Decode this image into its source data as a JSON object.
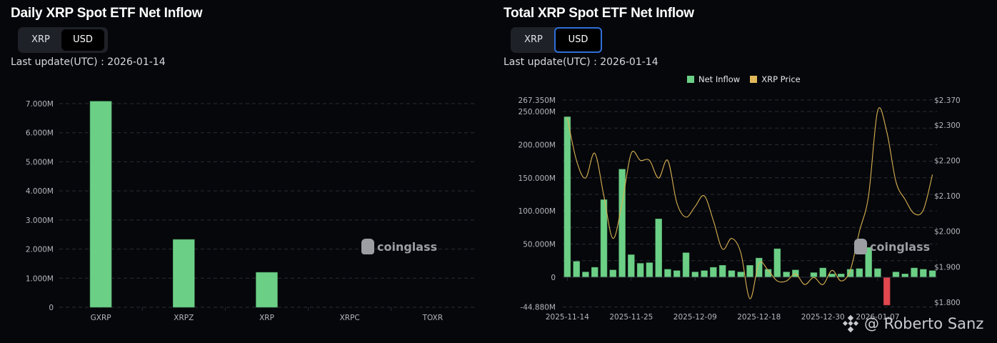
{
  "left": {
    "title": "Daily XRP Spot ETF Net Inflow",
    "toggle": [
      {
        "label": "XRP",
        "active": false
      },
      {
        "label": "USD",
        "active": true
      }
    ],
    "last_update": "Last update(UTC) : 2026-01-14"
  },
  "right": {
    "title": "Total XRP Spot ETF Net Inflow",
    "toggle": [
      {
        "label": "XRP",
        "active": false
      },
      {
        "label": "USD",
        "active": true
      }
    ],
    "last_update": "Last update(UTC) : 2026-01-14",
    "legend": [
      {
        "label": "Net Inflow",
        "color": "#6ccf86"
      },
      {
        "label": "XRP Price",
        "color": "#e1b85a"
      }
    ]
  },
  "watermark": "coinglass",
  "author": "@ Roberto Sanz",
  "colors": {
    "positive": "#6ccf86",
    "negative": "#e0474f",
    "price": "#d9b150",
    "background": "#06070b"
  },
  "chart_data": [
    {
      "type": "bar",
      "title": "Daily XRP Spot ETF Net Inflow",
      "xlabel": "",
      "ylabel": "",
      "categories": [
        "GXRP",
        "XRPZ",
        "XRP",
        "XRPC",
        "TOXR"
      ],
      "values": [
        7.08,
        2.33,
        1.2,
        0,
        0
      ],
      "unit": "M USD",
      "yticks": [
        "0",
        "1.000M",
        "2.000M",
        "3.000M",
        "4.000M",
        "5.000M",
        "6.000M",
        "7.000M"
      ],
      "ylim": [
        0,
        7.3
      ],
      "grid": true
    },
    {
      "type": "bar+line",
      "title": "Total XRP Spot ETF Net Inflow",
      "x_tick_labels": [
        "2025-11-14",
        "2025-11-25",
        "2025-12-09",
        "2025-12-18",
        "2025-12-30",
        "2026-01-07"
      ],
      "x_tick_index": [
        0,
        7,
        14,
        21,
        28,
        34
      ],
      "series": [
        {
          "name": "Net Inflow",
          "axis": "left",
          "unit": "M USD",
          "values": [
            242,
            24,
            8,
            15,
            117,
            11,
            163,
            34,
            21,
            22,
            88,
            12,
            10,
            37,
            8,
            10,
            15,
            18,
            10,
            8,
            18,
            29,
            12,
            43,
            8,
            11,
            0,
            7,
            14,
            5,
            5,
            12,
            13,
            45,
            13,
            -42,
            8,
            5,
            14,
            12,
            10
          ]
        },
        {
          "name": "XRP Price",
          "axis": "right",
          "unit": "USD",
          "values": [
            2.32,
            2.2,
            2.15,
            2.22,
            2.1,
            1.98,
            2.08,
            2.22,
            2.2,
            2.2,
            2.15,
            2.2,
            2.08,
            2.04,
            2.07,
            2.1,
            2.03,
            1.95,
            1.98,
            1.94,
            1.81,
            1.91,
            1.89,
            1.86,
            1.86,
            1.88,
            1.85,
            1.87,
            1.85,
            1.89,
            1.86,
            1.89,
            2.0,
            2.1,
            2.34,
            2.28,
            2.14,
            2.09,
            2.05,
            2.06,
            2.16
          ]
        }
      ],
      "yticks_left": [
        "-44.880M",
        "0",
        "50.000M",
        "100.000M",
        "150.000M",
        "200.000M",
        "250.000M",
        "267.350M"
      ],
      "ylim_left": [
        -44.88,
        267.35
      ],
      "yticks_right": [
        "$1.800",
        "$1.900",
        "$2.000",
        "$2.100",
        "$2.200",
        "$2.300",
        "$2.370"
      ],
      "ylim_right": [
        1.78,
        2.37
      ],
      "legend_position": "top-center",
      "grid": true
    }
  ]
}
